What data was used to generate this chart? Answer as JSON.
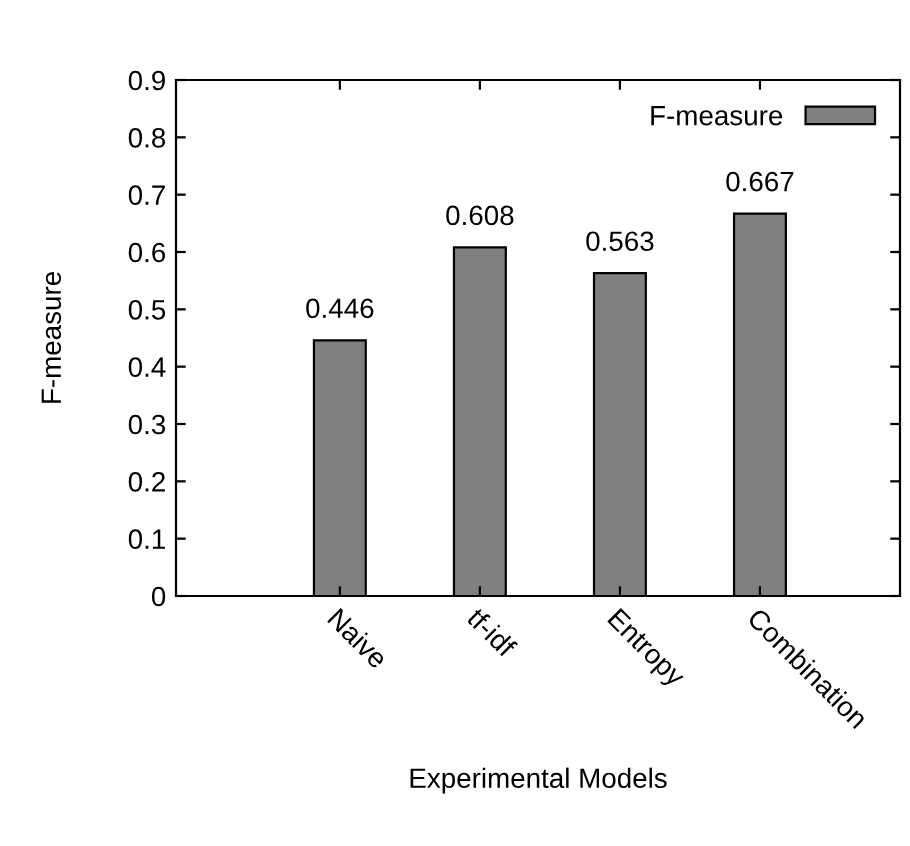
{
  "chart_data": {
    "type": "bar",
    "xlabel": "Experimental Models",
    "ylabel": "F-measure",
    "categories": [
      "Naive",
      "tf-idf",
      "Entropy",
      "Combination"
    ],
    "series": [
      {
        "name": "F-measure",
        "color": "#808080",
        "values": [
          0.446,
          0.608,
          0.563,
          0.667
        ]
      }
    ],
    "ylim": [
      0,
      0.9
    ],
    "yticks": [
      0,
      0.1,
      0.2,
      0.3,
      0.4,
      0.5,
      0.6,
      0.7,
      0.8,
      0.9
    ],
    "data_labels": true,
    "legend": "top right",
    "grid": false
  }
}
